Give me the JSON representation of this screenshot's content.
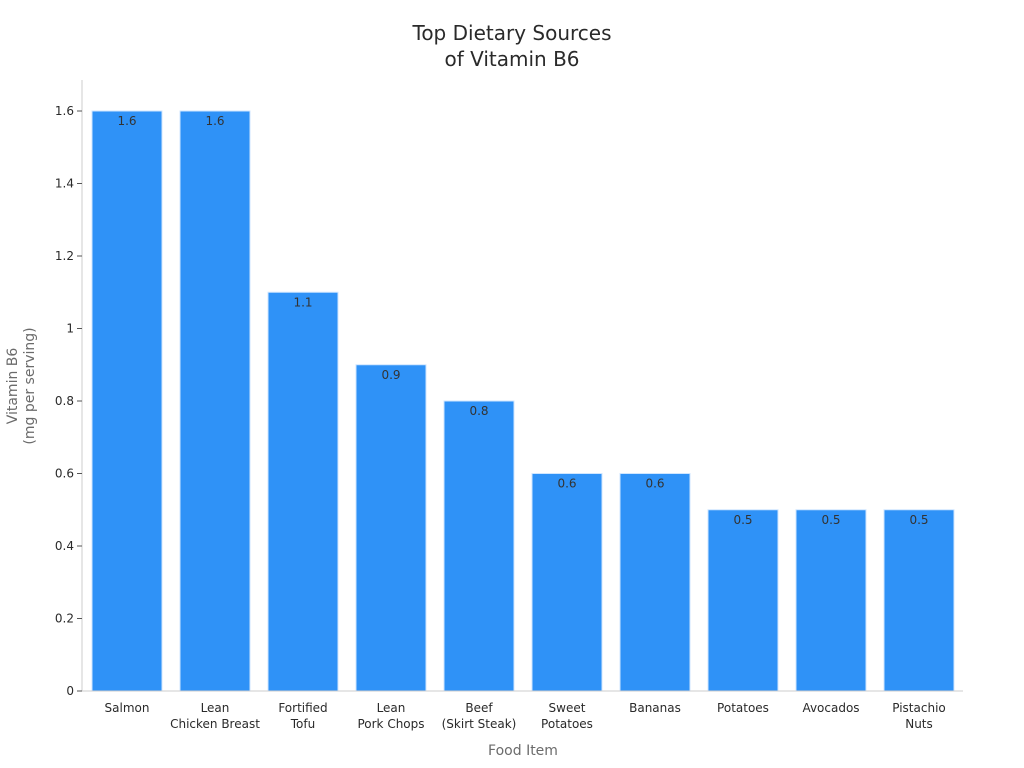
{
  "chart_data": {
    "type": "bar",
    "title": [
      "Top Dietary Sources",
      "of Vitamin B6"
    ],
    "xlabel": "Food Item",
    "ylabel": [
      "Vitamin B6",
      "(mg per serving)"
    ],
    "categories": [
      [
        "Salmon"
      ],
      [
        "Lean",
        "Chicken Breast"
      ],
      [
        "Fortified",
        "Tofu"
      ],
      [
        "Lean",
        "Pork Chops"
      ],
      [
        "Beef",
        "(Skirt Steak)"
      ],
      [
        "Sweet",
        "Potatoes"
      ],
      [
        "Bananas"
      ],
      [
        "Potatoes"
      ],
      [
        "Avocados"
      ],
      [
        "Pistachio",
        "Nuts"
      ]
    ],
    "values": [
      1.6,
      1.6,
      1.1,
      0.9,
      0.8,
      0.6,
      0.6,
      0.5,
      0.5,
      0.5
    ],
    "data_labels": [
      "1.6",
      "1.6",
      "1.1",
      "0.9",
      "0.8",
      "0.6",
      "0.6",
      "0.5",
      "0.5",
      "0.5"
    ],
    "ylim": [
      0,
      1.68
    ],
    "yticks": [
      0,
      0.2,
      0.4,
      0.6,
      0.8,
      1,
      1.2,
      1.4,
      1.6
    ],
    "ytick_labels": [
      "0",
      "0.2",
      "0.4",
      "0.6",
      "0.8",
      "1",
      "1.2",
      "1.4",
      "1.6"
    ],
    "grid": false,
    "legend": "none",
    "bar_color": "#2f92f7"
  }
}
